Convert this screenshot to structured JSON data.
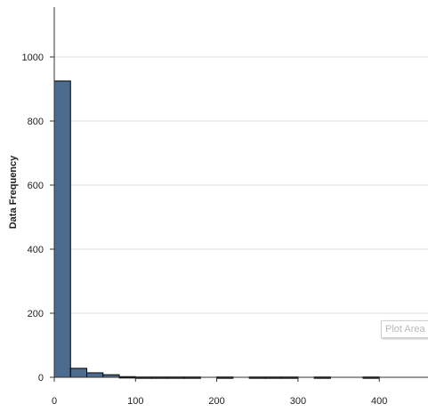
{
  "chart_data": {
    "type": "bar",
    "subtype": "histogram",
    "xlabel": "",
    "ylabel": "Data Frequency",
    "xlim": [
      0,
      460
    ],
    "ylim": [
      0,
      1100
    ],
    "x_ticks": [
      0,
      100,
      200,
      300,
      400
    ],
    "y_ticks": [
      0,
      200,
      400,
      600,
      800,
      1000
    ],
    "grid": "horizontal",
    "bin_width": 20,
    "bins": [
      {
        "x0": 0,
        "x1": 20,
        "count": 925
      },
      {
        "x0": 20,
        "x1": 40,
        "count": 28
      },
      {
        "x0": 40,
        "x1": 60,
        "count": 14
      },
      {
        "x0": 60,
        "x1": 80,
        "count": 8
      },
      {
        "x0": 80,
        "x1": 100,
        "count": 2
      },
      {
        "x0": 100,
        "x1": 120,
        "count": 1
      },
      {
        "x0": 120,
        "x1": 140,
        "count": 1
      },
      {
        "x0": 140,
        "x1": 160,
        "count": 1
      },
      {
        "x0": 160,
        "x1": 180,
        "count": 1
      },
      {
        "x0": 200,
        "x1": 220,
        "count": 1
      },
      {
        "x0": 240,
        "x1": 260,
        "count": 1
      },
      {
        "x0": 260,
        "x1": 280,
        "count": 1
      },
      {
        "x0": 280,
        "x1": 300,
        "count": 1
      },
      {
        "x0": 320,
        "x1": 340,
        "count": 1
      },
      {
        "x0": 380,
        "x1": 400,
        "count": 1
      }
    ],
    "bar_color": "#4d6a8f",
    "bar_stroke": "#000000"
  },
  "tooltip": {
    "text": "Plot Area"
  }
}
